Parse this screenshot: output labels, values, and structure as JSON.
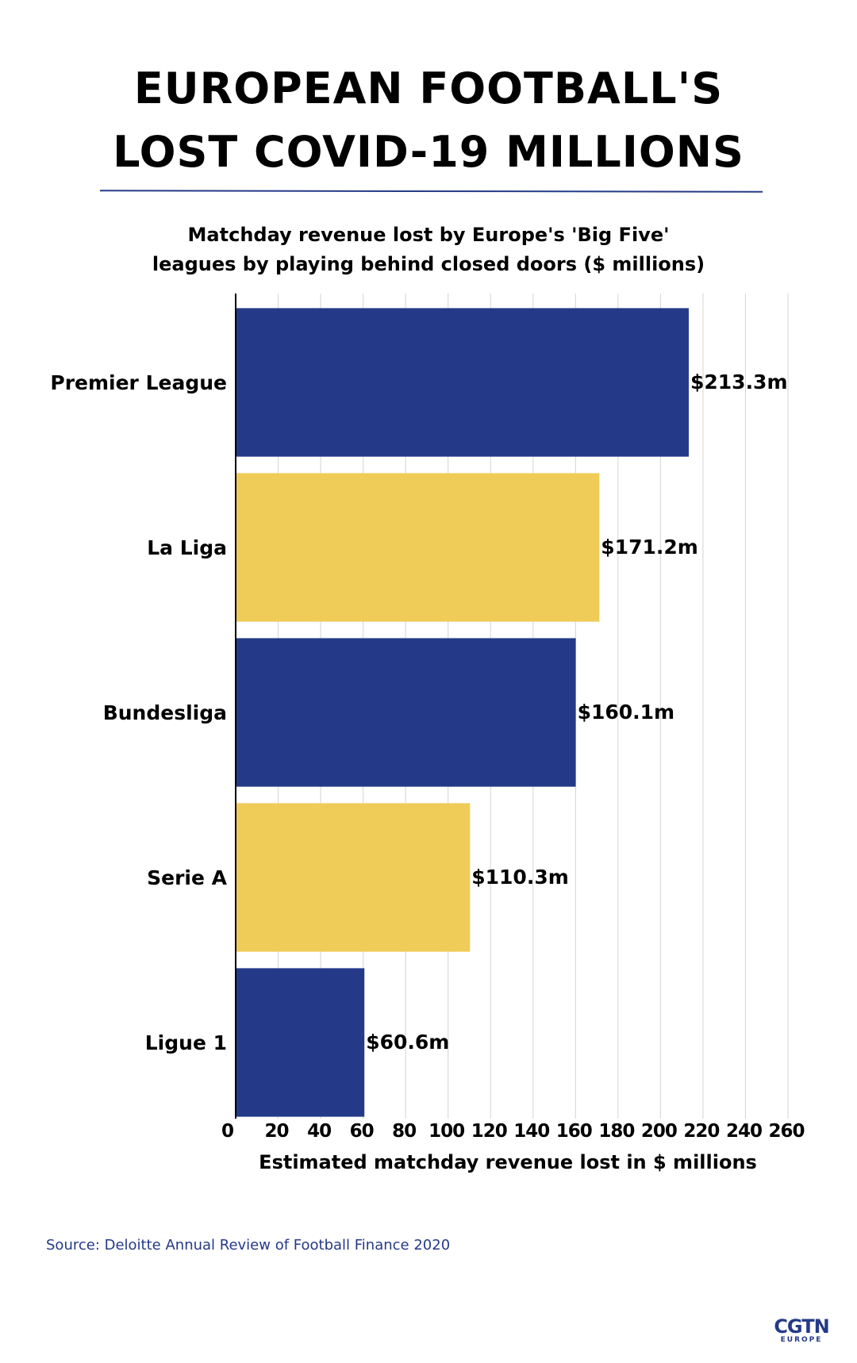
{
  "header": {
    "title_line1": "EUROPEAN FOOTBALL'S",
    "title_line2": "LOST COVID-19 MILLIONS",
    "subtitle_line1": "Matchday revenue lost by Europe's 'Big Five'",
    "subtitle_line2": "leagues by playing behind closed doors ($ millions)"
  },
  "chart_data": {
    "type": "bar",
    "orientation": "horizontal",
    "categories": [
      "Premier League",
      "La Liga",
      "Bundesliga",
      "Serie A",
      "Ligue 1"
    ],
    "values": [
      213.3,
      171.2,
      160.1,
      110.3,
      60.6
    ],
    "data_labels": [
      "$213.3m",
      "$171.2m",
      "$160.1m",
      "$110.3m",
      "$60.6m"
    ],
    "bar_colors": [
      "#243a88",
      "#efcc58",
      "#243a88",
      "#efcc58",
      "#243a88"
    ],
    "xlabel": "Estimated matchday revenue lost in $ millions",
    "xlim": [
      0,
      260
    ],
    "xticks": [
      0,
      20,
      40,
      60,
      80,
      100,
      120,
      140,
      160,
      180,
      200,
      220,
      240,
      260
    ],
    "grid": true
  },
  "footer": {
    "source": "Source: Deloitte Annual Review of Football Finance 2020",
    "logo_main": "CGTN",
    "logo_sub": "EUROPE"
  }
}
